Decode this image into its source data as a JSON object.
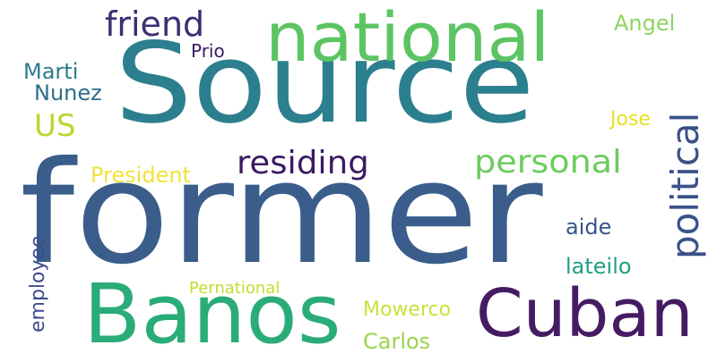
{
  "words": [
    {
      "text": "Source",
      "color": "#2c7f8e"
    },
    {
      "text": "former",
      "color": "#3a5d8b"
    },
    {
      "text": "national",
      "color": "#5cc463"
    },
    {
      "text": "Banos",
      "color": "#2aac78"
    },
    {
      "text": "Cuban",
      "color": "#451b63"
    },
    {
      "text": "residing",
      "color": "#3c1a62"
    },
    {
      "text": "personal",
      "color": "#6ccc5e"
    },
    {
      "text": "political",
      "color": "#3b5188"
    },
    {
      "text": "friend",
      "color": "#3c2e72"
    },
    {
      "text": "Angel",
      "color": "#8ed45f"
    },
    {
      "text": "Prio",
      "color": "#3a1b5f"
    },
    {
      "text": "Marti",
      "color": "#2a7c8e"
    },
    {
      "text": "Nunez",
      "color": "#2f6f8b"
    },
    {
      "text": "US",
      "color": "#b8d82f"
    },
    {
      "text": "Jose",
      "color": "#e6e024"
    },
    {
      "text": "President",
      "color": "#f2e33a"
    },
    {
      "text": "employee",
      "color": "#3e4c8b"
    },
    {
      "text": "aide",
      "color": "#36568b"
    },
    {
      "text": "lateilo",
      "color": "#1fa083"
    },
    {
      "text": "Pernational",
      "color": "#bedf2d"
    },
    {
      "text": "Mowerco",
      "color": "#cce03a"
    },
    {
      "text": "Carlos",
      "color": "#9ad54b"
    }
  ]
}
